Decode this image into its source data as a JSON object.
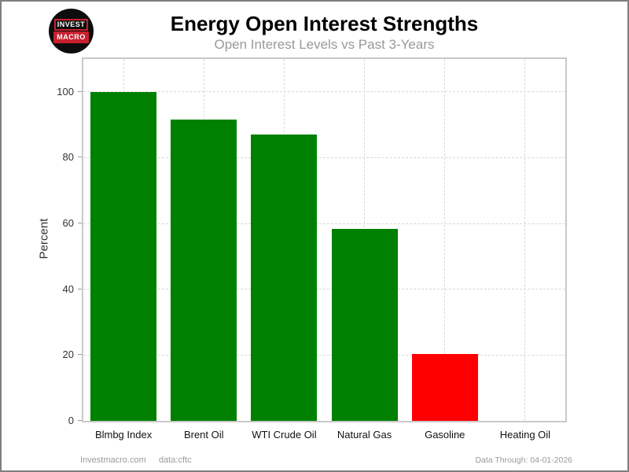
{
  "logo": {
    "line1": "INVEST",
    "line2": "MACRO"
  },
  "chart_data": {
    "type": "bar",
    "title": "Energy Open Interest Strengths",
    "subtitle": "Open Interest Levels vs Past 3-Years",
    "categories": [
      "Blmbg Index",
      "Brent Oil",
      "WTI Crude Oil",
      "Natural Gas",
      "Gasoline",
      "Heating Oil"
    ],
    "values": [
      100,
      91.5,
      87,
      58.3,
      20.4,
      0
    ],
    "bar_colors": [
      "#008000",
      "#008000",
      "#008000",
      "#008000",
      "#ff0000",
      "#008000"
    ],
    "xlabel": "",
    "ylabel": "Percent",
    "ylim": [
      0,
      110
    ],
    "yticks": [
      0,
      20,
      40,
      60,
      80,
      100
    ],
    "grid": "dashed-both-axes",
    "legend": "none"
  },
  "colors": {
    "positive_bar": "#008000",
    "negative_bar": "#ff0000",
    "grid": "#d9d9d9",
    "panel_border": "#c9c9c9",
    "subtitle_text": "#999999",
    "logo_red": "#c8202e"
  },
  "footer": {
    "site": "Investmacro.com",
    "source": "data:cftc",
    "data_through": "Data Through: 04-01-2026"
  }
}
